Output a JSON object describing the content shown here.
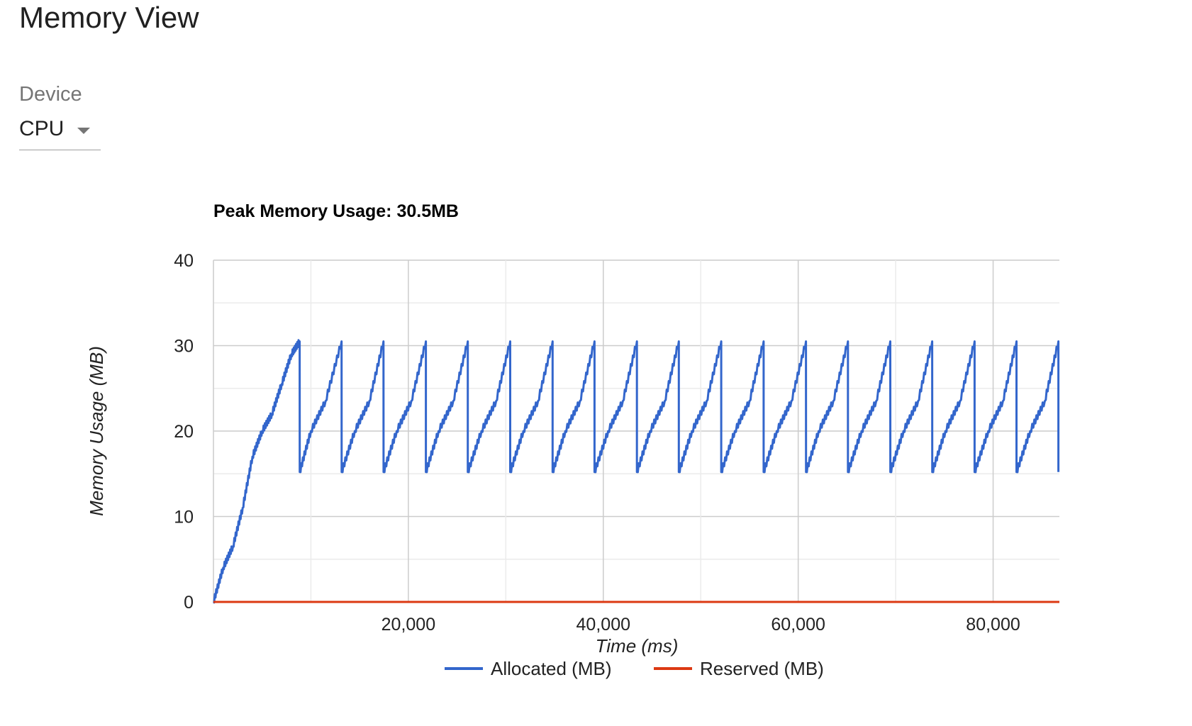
{
  "page": {
    "title": "Memory View"
  },
  "device_select": {
    "label": "Device",
    "value": "CPU",
    "arrow_icon": "dropdown-arrow-icon"
  },
  "colors": {
    "allocated": "#3366cc",
    "reserved": "#dc3912",
    "grid_major": "#cccccc",
    "grid_minor": "#ebebeb",
    "text": "#222222",
    "axis_title": "#222222"
  },
  "chart_data": {
    "type": "line",
    "title": "Peak Memory Usage: 30.5MB",
    "xlabel": "Time (ms)",
    "ylabel": "Memory Usage (MB)",
    "xlim": [
      0,
      86800
    ],
    "ylim": [
      0,
      40
    ],
    "x_ticks": [
      20000,
      40000,
      60000,
      80000
    ],
    "x_tick_labels": [
      "20,000",
      "40,000",
      "60,000",
      "80,000"
    ],
    "y_ticks": [
      0,
      10,
      20,
      30,
      40
    ],
    "y_tick_labels": [
      "0",
      "10",
      "20",
      "30",
      "40"
    ],
    "legend": [
      "Allocated (MB)",
      "Reserved (MB)"
    ],
    "legend_position": "bottom",
    "series": [
      {
        "name": "Allocated (MB)",
        "color": "#3366cc",
        "x": [
          0,
          1000,
          2000,
          3000,
          4000,
          5000,
          6000,
          7000,
          8000,
          8850,
          8851,
          10000,
          11500,
          13150,
          13151,
          14500,
          16000,
          17450,
          17451,
          18800,
          20300,
          21800,
          21801,
          23100,
          24600,
          26100,
          26101,
          27500,
          29000,
          30450,
          30451,
          31800,
          33300,
          34800,
          34801,
          36100,
          37600,
          39100,
          39101,
          40500,
          42000,
          43450,
          43451,
          44800,
          46300,
          47750,
          47751,
          49100,
          50600,
          52100,
          52101,
          53500,
          55000,
          56450,
          56451,
          57800,
          59300,
          60800,
          60801,
          62100,
          63600,
          65100,
          65101,
          66500,
          68000,
          69450,
          69451,
          70800,
          72300,
          73750,
          73751,
          75100,
          76600,
          78100,
          78101,
          79500,
          81000,
          82400,
          82401,
          83800,
          85300,
          86700,
          86701
        ],
        "values": [
          0,
          4,
          6.5,
          11,
          17,
          20,
          22,
          25.5,
          29,
          30.5,
          15.2,
          20,
          23.5,
          30.5,
          15.2,
          20,
          23.5,
          30.5,
          15.2,
          20,
          23.5,
          30.5,
          15.2,
          20,
          23.5,
          30.5,
          15.2,
          20,
          23.5,
          30.5,
          15.2,
          20,
          23.5,
          30.5,
          15.2,
          20,
          23.5,
          30.5,
          15.2,
          20,
          23.5,
          30.5,
          15.2,
          20,
          23.5,
          30.5,
          15.2,
          20,
          23.5,
          30.5,
          15.2,
          20,
          23.5,
          30.5,
          15.2,
          20,
          23.5,
          30.5,
          15.2,
          20,
          23.5,
          30.5,
          15.2,
          20,
          23.5,
          30.5,
          15.2,
          20,
          23.5,
          30.5,
          15.2,
          20,
          23.5,
          30.5,
          15.2,
          20,
          23.5,
          30.5,
          15.2,
          20,
          23.5,
          30.5,
          15.2
        ]
      },
      {
        "name": "Reserved (MB)",
        "color": "#dc3912",
        "x": [
          0,
          86800
        ],
        "values": [
          0,
          0
        ]
      }
    ]
  }
}
